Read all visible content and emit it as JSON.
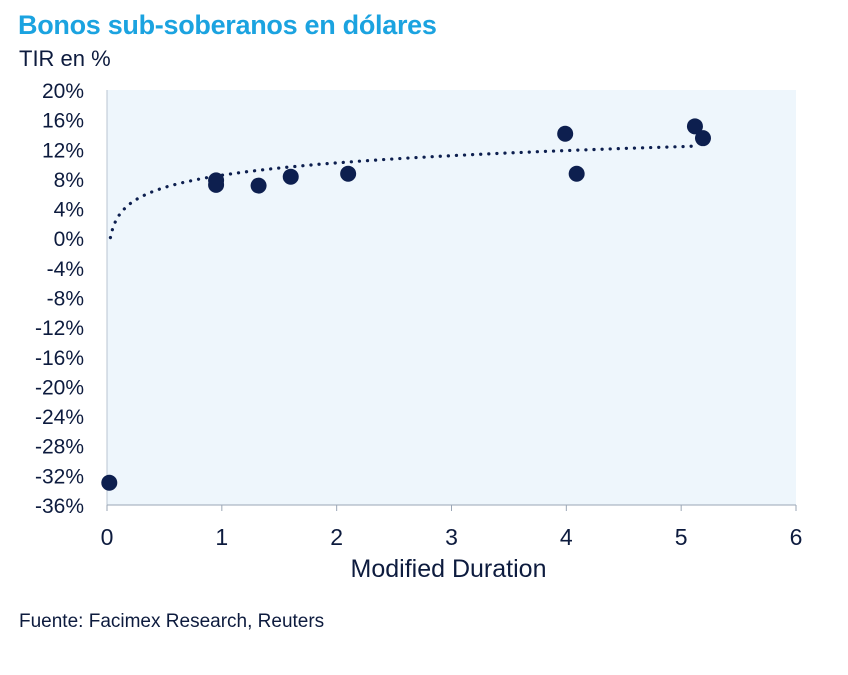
{
  "header": {
    "title": "Bonos sub-soberanos en dólares",
    "subtitle": "TIR en %"
  },
  "footer": {
    "source": "Fuente: Facimex Research, Reuters"
  },
  "colors": {
    "title": "#1ba3e0",
    "text": "#0d1b3e",
    "points": "#0d1f4f",
    "plot_bg": "#eef6fc"
  },
  "chart_data": {
    "type": "scatter",
    "title": "Bonos sub-soberanos en dólares",
    "xlabel": "Modified Duration",
    "ylabel": "TIR en %",
    "xlim": [
      0,
      6
    ],
    "ylim": [
      -36,
      20
    ],
    "x_ticks": [
      0,
      1,
      2,
      3,
      4,
      5,
      6
    ],
    "y_ticks": [
      20,
      16,
      12,
      8,
      4,
      0,
      -4,
      -8,
      -12,
      -16,
      -20,
      -24,
      -28,
      -32,
      -36
    ],
    "y_tick_labels": [
      "20%",
      "16%",
      "12%",
      "8%",
      "4%",
      "0%",
      "-4%",
      "-8%",
      "-12%",
      "-16%",
      "-20%",
      "-24%",
      "-28%",
      "-32%",
      "-36%"
    ],
    "x_tick_labels": [
      "0",
      "1",
      "2",
      "3",
      "4",
      "5",
      "6"
    ],
    "points": [
      {
        "x": 0.02,
        "y": -33.0
      },
      {
        "x": 0.95,
        "y": 7.8
      },
      {
        "x": 0.95,
        "y": 7.2
      },
      {
        "x": 1.32,
        "y": 7.1
      },
      {
        "x": 1.6,
        "y": 8.3
      },
      {
        "x": 2.1,
        "y": 8.7
      },
      {
        "x": 3.99,
        "y": 14.1
      },
      {
        "x": 4.09,
        "y": 8.7
      },
      {
        "x": 5.12,
        "y": 15.1
      },
      {
        "x": 5.19,
        "y": 13.5
      }
    ],
    "trendline": {
      "type": "logarithmic",
      "style": "dotted",
      "x_range": [
        0.03,
        5.15
      ],
      "a": 2.4,
      "b": 8.5
    }
  }
}
